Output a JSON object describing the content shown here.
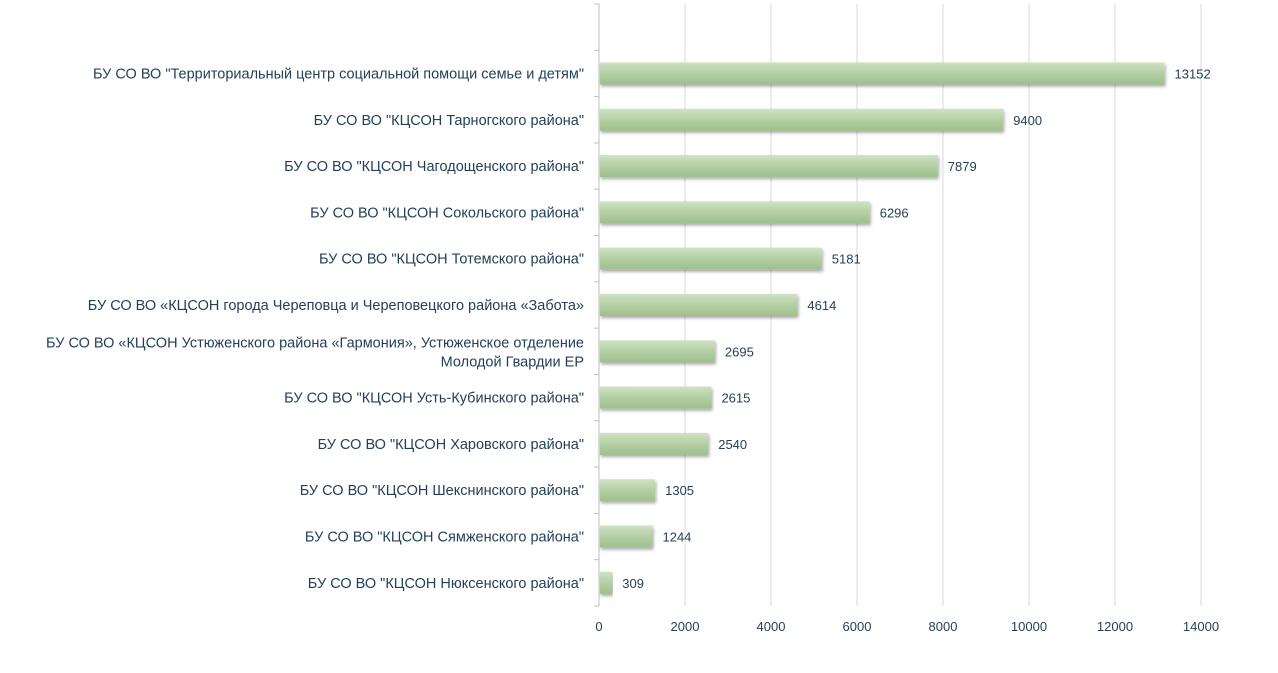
{
  "chart_data": {
    "type": "bar",
    "orientation": "horizontal",
    "categories": [
      "БУ СО ВО \"Территориальный центр социальной помощи семье и детям\"",
      "БУ СО ВО \"КЦСОН Тарногского района\"",
      "БУ СО ВО \"КЦСОН Чагодощенского района\"",
      "БУ СО ВО \"КЦСОН Сокольского района\"",
      "БУ СО ВО \"КЦСОН Тотемского района\"",
      "БУ СО ВО «КЦСОН города Череповца и Череповецкого района «Забота»",
      "БУ СО ВО «КЦСОН Устюженского района «Гармония», Устюженское отделение|Молодой Гвардии ЕР",
      "БУ СО ВО \"КЦСОН Усть-Кубинского района\"",
      "БУ СО ВО \"КЦСОН Харовского района\"",
      "БУ СО ВО \"КЦСОН Шекснинского района\"",
      "БУ СО ВО \"КЦСОН Сямженского района\"",
      "БУ СО ВО \"КЦСОН Нюксенского района\""
    ],
    "values": [
      13152,
      9400,
      7879,
      6296,
      5181,
      4614,
      2695,
      2615,
      2540,
      1305,
      1244,
      309
    ],
    "xlim": [
      0,
      14000
    ],
    "xticks": [
      0,
      2000,
      4000,
      6000,
      8000,
      10000,
      12000,
      14000
    ],
    "grid": true,
    "data_labels": true,
    "bar_color": "#b5d1a6",
    "title": "",
    "xlabel": "",
    "ylabel": ""
  }
}
